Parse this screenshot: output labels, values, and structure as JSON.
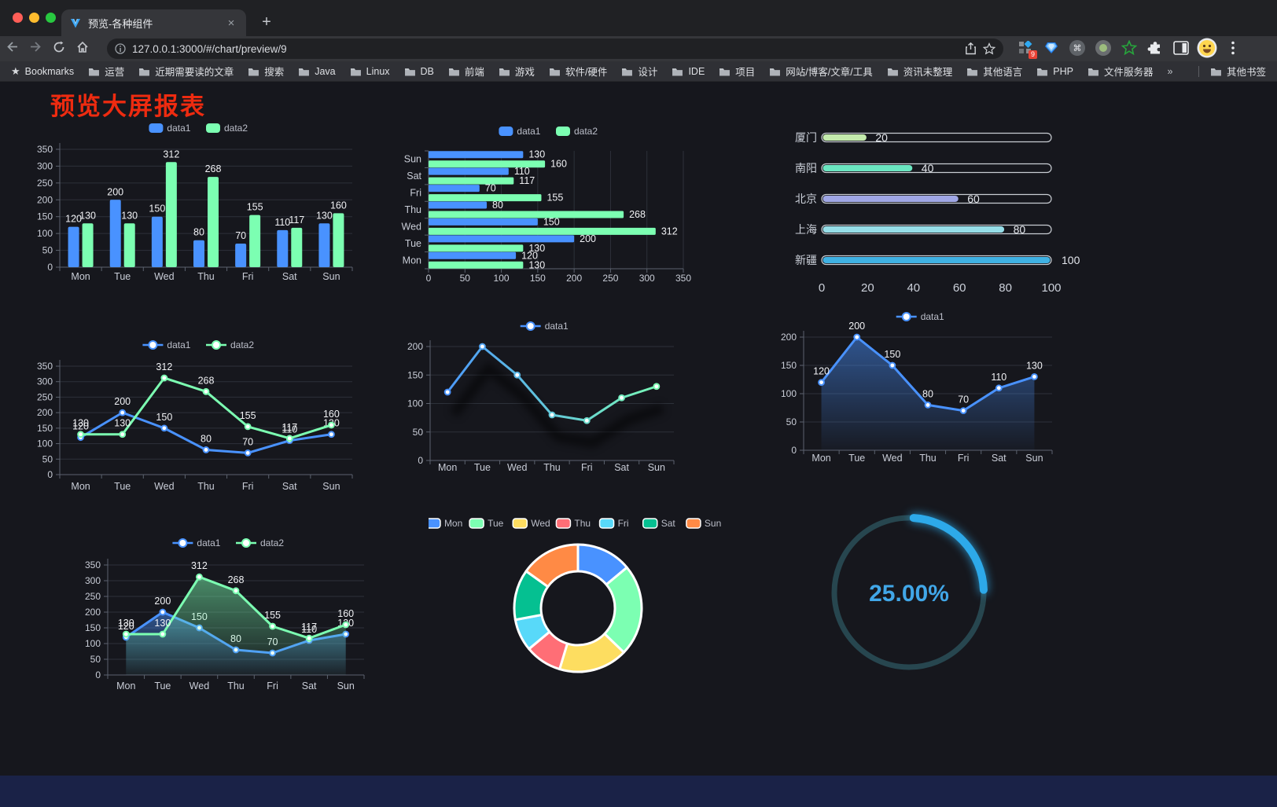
{
  "browser": {
    "tab_title": "预览-各种组件",
    "url": "127.0.0.1:3000/#/chart/preview/9",
    "bookmarks_label": "Bookmarks",
    "bookmarks": [
      "运营",
      "近期需要读的文章",
      "搜索",
      "Java",
      "Linux",
      "DB",
      "前端",
      "游戏",
      "软件/硬件",
      "设计",
      "IDE",
      "项目",
      "网站/博客/文章/工具",
      "资讯未整理",
      "其他语言",
      "PHP",
      "文件服务器"
    ],
    "bookmarks_overflow": "»",
    "other_bookmarks": "其他书签",
    "extension_badge": "9",
    "tab_close": "×",
    "new_tab": "+"
  },
  "page": {
    "title": "预览大屏报表",
    "title_color": "#ee2b10",
    "background": "#16171d"
  },
  "palette": {
    "data1": "#4992ff",
    "data2": "#7cffb2",
    "axis": "#5c626e",
    "grid": "#2d313a",
    "tick_text": "#c9cdd7",
    "value_label": "#f1f2f5",
    "legend_text": "#bcbfca"
  },
  "chart_data": [
    {
      "id": "grouped-bar",
      "type": "bar",
      "categories": [
        "Mon",
        "Tue",
        "Wed",
        "Thu",
        "Fri",
        "Sat",
        "Sun"
      ],
      "series": [
        {
          "name": "data1",
          "color": "#4992ff",
          "values": [
            120,
            200,
            150,
            80,
            70,
            110,
            130
          ]
        },
        {
          "name": "data2",
          "color": "#7cffb2",
          "values": [
            130,
            130,
            312,
            268,
            155,
            117,
            160
          ]
        }
      ],
      "ylim": [
        0,
        350
      ],
      "ytick": 50,
      "legend_position": "top",
      "value_labels": true,
      "grid": true
    },
    {
      "id": "grouped-bar-horizontal",
      "type": "bar-horizontal",
      "categories": [
        "Mon",
        "Tue",
        "Wed",
        "Thu",
        "Fri",
        "Sat",
        "Sun"
      ],
      "series": [
        {
          "name": "data1",
          "color": "#4992ff",
          "values": [
            120,
            200,
            150,
            80,
            70,
            110,
            130
          ]
        },
        {
          "name": "data2",
          "color": "#7cffb2",
          "values": [
            130,
            130,
            312,
            268,
            155,
            117,
            160
          ]
        }
      ],
      "xlim": [
        0,
        350
      ],
      "xtick": 50,
      "legend_position": "top",
      "value_labels": true,
      "grid": true
    },
    {
      "id": "city-progress",
      "type": "progress",
      "rows": [
        {
          "label": "厦门",
          "value": 20,
          "color": "#c4ebad"
        },
        {
          "label": "南阳",
          "value": 40,
          "color": "#6be6c1"
        },
        {
          "label": "北京",
          "value": 60,
          "color": "#a0a7e6"
        },
        {
          "label": "上海",
          "value": 80,
          "color": "#96dee8"
        },
        {
          "label": "新疆",
          "value": 100,
          "color": "#3fb1e3"
        }
      ],
      "xlim": [
        0,
        100
      ],
      "xticks": [
        0,
        20,
        40,
        60,
        80,
        100
      ]
    },
    {
      "id": "line-two-series",
      "type": "line",
      "categories": [
        "Mon",
        "Tue",
        "Wed",
        "Thu",
        "Fri",
        "Sat",
        "Sun"
      ],
      "series": [
        {
          "name": "data1",
          "color": "#4992ff",
          "values": [
            120,
            200,
            150,
            80,
            70,
            110,
            130
          ]
        },
        {
          "name": "data2",
          "color": "#7cffb2",
          "values": [
            130,
            130,
            312,
            268,
            155,
            117,
            160
          ]
        }
      ],
      "ylim": [
        0,
        350
      ],
      "ytick": 50,
      "legend_position": "top",
      "value_labels": true,
      "grid": true
    },
    {
      "id": "gradient-line",
      "type": "line",
      "categories": [
        "Mon",
        "Tue",
        "Wed",
        "Thu",
        "Fri",
        "Sat",
        "Sun"
      ],
      "series": [
        {
          "name": "data1",
          "gradient": [
            "#4992ff",
            "#7cffb2"
          ],
          "values": [
            120,
            200,
            150,
            80,
            70,
            110,
            130
          ]
        }
      ],
      "ylim": [
        0,
        200
      ],
      "ytick": 50,
      "legend_position": "top",
      "value_labels": false,
      "shadow": true,
      "grid": true
    },
    {
      "id": "area-line",
      "type": "line",
      "categories": [
        "Mon",
        "Tue",
        "Wed",
        "Thu",
        "Fri",
        "Sat",
        "Sun"
      ],
      "series": [
        {
          "name": "data1",
          "color": "#4992ff",
          "area": true,
          "values": [
            120,
            200,
            150,
            80,
            70,
            110,
            130
          ]
        }
      ],
      "ylim": [
        0,
        200
      ],
      "ytick": 50,
      "legend_position": "top",
      "value_labels": true,
      "grid": true
    },
    {
      "id": "two-area-line",
      "type": "line",
      "categories": [
        "Mon",
        "Tue",
        "Wed",
        "Thu",
        "Fri",
        "Sat",
        "Sun"
      ],
      "series": [
        {
          "name": "data1",
          "color": "#4992ff",
          "area": true,
          "values": [
            120,
            200,
            150,
            80,
            70,
            110,
            130
          ]
        },
        {
          "name": "data2",
          "color": "#7cffb2",
          "area": true,
          "values": [
            130,
            130,
            312,
            268,
            155,
            117,
            160
          ]
        }
      ],
      "ylim": [
        0,
        350
      ],
      "ytick": 50,
      "legend_position": "top",
      "value_labels": true,
      "grid": true
    },
    {
      "id": "donut-pie",
      "type": "pie",
      "donut": true,
      "categories": [
        "Mon",
        "Tue",
        "Wed",
        "Thu",
        "Fri",
        "Sat",
        "Sun"
      ],
      "values": [
        120,
        200,
        150,
        80,
        70,
        110,
        130
      ],
      "colors": [
        "#4992ff",
        "#7cffb2",
        "#fddd60",
        "#ff6e76",
        "#58d9f9",
        "#05c091",
        "#ff8a45"
      ],
      "legend_position": "top"
    },
    {
      "id": "ring-gauge",
      "type": "gauge",
      "value": 25,
      "display": "25.00%",
      "color": "#2da9e9",
      "track_color": "#27464f",
      "text_color": "#41a7e8"
    }
  ]
}
